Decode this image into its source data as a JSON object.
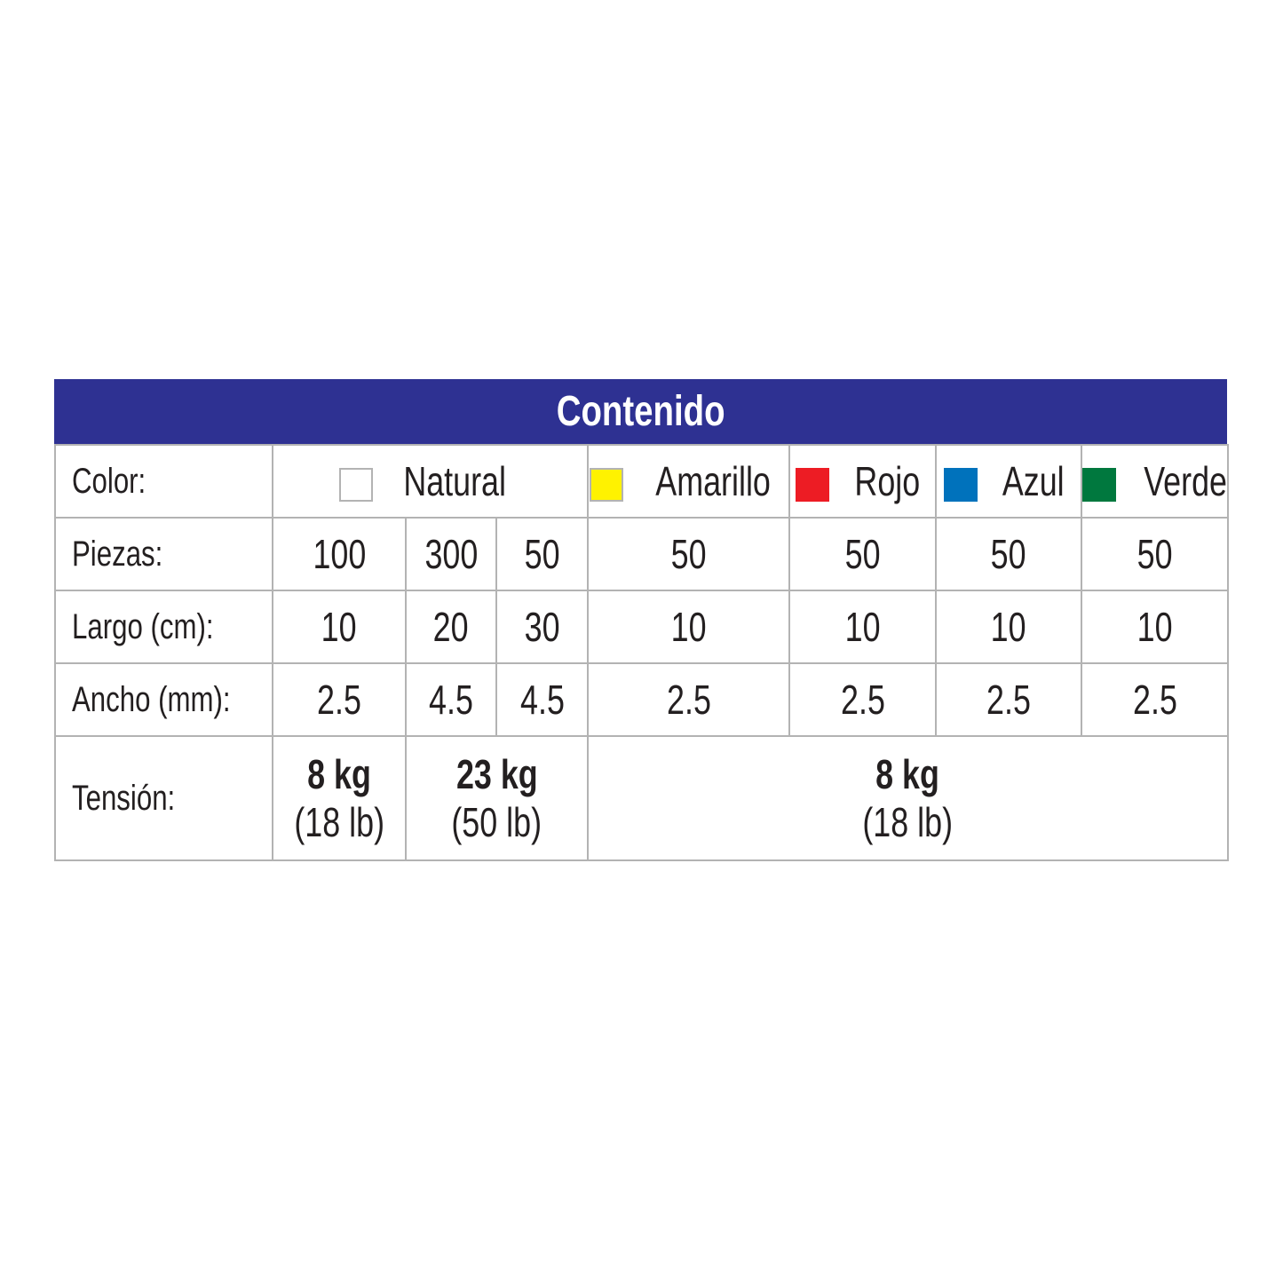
{
  "title": "Contenido",
  "labels": {
    "color": "Color:",
    "piezas": "Piezas:",
    "largo": "Largo (cm):",
    "ancho": "Ancho (mm):",
    "tension": "Tensión:"
  },
  "colors": [
    {
      "name": "Natural",
      "swatch": "#ffffff"
    },
    {
      "name": "Amarillo",
      "swatch": "#fff200"
    },
    {
      "name": "Rojo",
      "swatch": "#ed1c24"
    },
    {
      "name": "Azul",
      "swatch": "#0072bc"
    },
    {
      "name": "Verde",
      "swatch": "#00783e"
    }
  ],
  "piezas": [
    "100",
    "300",
    "50",
    "50",
    "50",
    "50",
    "50"
  ],
  "largo": [
    "10",
    "20",
    "30",
    "10",
    "10",
    "10",
    "10"
  ],
  "ancho": [
    "2.5",
    "4.5",
    "4.5",
    "2.5",
    "2.5",
    "2.5",
    "2.5"
  ],
  "tension": [
    {
      "kg": "8 kg",
      "lb": "(18 lb)"
    },
    {
      "kg": "23 kg",
      "lb": "(50 lb)"
    },
    {
      "kg": "8 kg",
      "lb": "(18 lb)"
    }
  ],
  "header_color": "#2e3192",
  "border_color": "#b3b3b3"
}
